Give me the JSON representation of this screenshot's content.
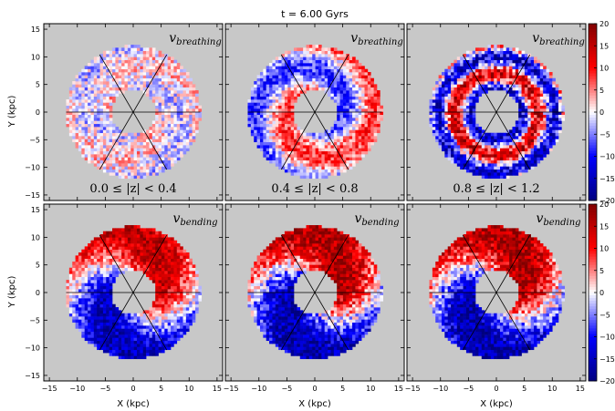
{
  "chart_data": {
    "type": "heatmap",
    "title": "t = 6.00 Gyrs",
    "xlabel": "X (kpc)",
    "ylabel": "Y (kpc)",
    "xlim": [
      -16,
      16
    ],
    "ylim": [
      -16,
      16
    ],
    "xticks": [
      -15,
      -10,
      -5,
      0,
      5,
      10,
      15
    ],
    "yticks": [
      -15,
      -10,
      -5,
      0,
      5,
      10,
      15
    ],
    "xtick_labels": [
      "−15",
      "−10",
      "−5",
      "0",
      "5",
      "10",
      "15"
    ],
    "ytick_labels": [
      "−15",
      "−10",
      "−5",
      "0",
      "5",
      "10",
      "15"
    ],
    "background_color": "#c8c8c8",
    "colormap": "seismic",
    "ring": {
      "inner_radius_kpc": 4,
      "outer_radius_kpc": 12
    },
    "sector_lines_deg": [
      0,
      60,
      120
    ],
    "colorbar": {
      "range": [
        -20,
        20
      ],
      "ticks": [
        20,
        15,
        10,
        5,
        0,
        -5,
        -10,
        -15,
        -20
      ],
      "tick_labels": [
        "20",
        "15",
        "10",
        "5",
        "0",
        "−5",
        "−10",
        "−15",
        "−20"
      ]
    },
    "rows": [
      {
        "name": "v_breathing",
        "label_main": "v",
        "label_sub": "breathing"
      },
      {
        "name": "v_bending",
        "label_main": "v",
        "label_sub": "bending"
      }
    ],
    "columns": [
      {
        "z_range": "0.0 ≤ |z| < 0.4",
        "z_min": 0.0,
        "z_max": 0.4
      },
      {
        "z_range": "0.4 ≤ |z| < 0.8",
        "z_min": 0.4,
        "z_max": 0.8
      },
      {
        "z_range": "0.8 ≤ |z| < 1.2",
        "z_min": 0.8,
        "z_max": 1.2
      }
    ],
    "panels": [
      {
        "row": 0,
        "col": 0,
        "pattern": "weak_mixed",
        "amplitude_kms": 6
      },
      {
        "row": 0,
        "col": 1,
        "pattern": "spiral_red_blue",
        "amplitude_kms": 9
      },
      {
        "row": 0,
        "col": 2,
        "pattern": "rings_red_blue",
        "amplitude_kms": 14
      },
      {
        "row": 1,
        "col": 0,
        "pattern": "red_north_blue_south",
        "amplitude_kms": 16
      },
      {
        "row": 1,
        "col": 1,
        "pattern": "red_north_blue_south",
        "amplitude_kms": 18
      },
      {
        "row": 1,
        "col": 2,
        "pattern": "red_north_blue_south",
        "amplitude_kms": 18
      }
    ]
  }
}
